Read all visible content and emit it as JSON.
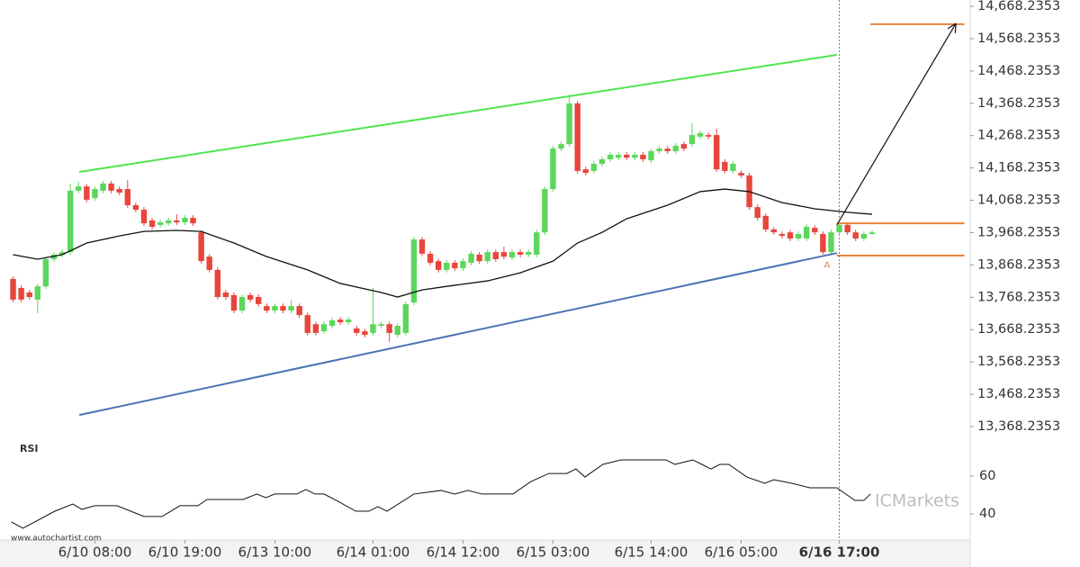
{
  "chart_data": {
    "type": "candlestick",
    "up_color": "#5cd65c",
    "down_color": "#e8453c",
    "xlim": [
      -0.5,
      117
    ],
    "ylim": [
      13323.7,
      14687.7
    ],
    "yticks": [
      {
        "value": 14668.2353,
        "label": "14,668.2353"
      },
      {
        "value": 14568.2353,
        "label": "14,568.2353"
      },
      {
        "value": 14468.2353,
        "label": "14,468.2353"
      },
      {
        "value": 14368.2353,
        "label": "14,368.2353"
      },
      {
        "value": 14268.2353,
        "label": "14,268.2353"
      },
      {
        "value": 14168.2353,
        "label": "14,168.2353"
      },
      {
        "value": 14068.2353,
        "label": "14,068.2353"
      },
      {
        "value": 13968.2353,
        "label": "13,968.2353"
      },
      {
        "value": 13868.2353,
        "label": "13,868.2353"
      },
      {
        "value": 13768.2353,
        "label": "13,768.2353"
      },
      {
        "value": 13668.2353,
        "label": "13,668.2353"
      },
      {
        "value": 13568.2353,
        "label": "13,568.2353"
      },
      {
        "value": 13468.2353,
        "label": "13,468.2353"
      },
      {
        "value": 13368.2353,
        "label": "13,368.2353"
      }
    ],
    "xticks": [
      {
        "value": 10,
        "label": "6/10 08:00"
      },
      {
        "value": 21,
        "label": "6/10 19:00"
      },
      {
        "value": 32,
        "label": "6/13 10:00"
      },
      {
        "value": 44,
        "label": "6/14 01:00"
      },
      {
        "value": 55,
        "label": "6/14 12:00"
      },
      {
        "value": 66,
        "label": "6/15 03:00"
      },
      {
        "value": 78,
        "label": "6/15 14:00"
      },
      {
        "value": 89,
        "label": "6/16 05:00"
      },
      {
        "value": 101,
        "label": "6/16 17:00"
      }
    ],
    "ohlc": [
      [
        13825,
        13833,
        13753,
        13761
      ],
      [
        13797,
        13805,
        13753,
        13761
      ],
      [
        13783,
        13791,
        13761,
        13769
      ],
      [
        13761,
        13810,
        13719,
        13802
      ],
      [
        13802,
        13894,
        13794,
        13886
      ],
      [
        13886,
        13908,
        13878,
        13900
      ],
      [
        13900,
        13916,
        13892,
        13908
      ],
      [
        13908,
        14120,
        13900,
        14098
      ],
      [
        14098,
        14125,
        14090,
        14111
      ],
      [
        14111,
        14119,
        14062,
        14070
      ],
      [
        14075,
        14111,
        14067,
        14103
      ],
      [
        14098,
        14128,
        14090,
        14120
      ],
      [
        14120,
        14128,
        14090,
        14098
      ],
      [
        14103,
        14111,
        14084,
        14092
      ],
      [
        14103,
        14131,
        14045,
        14053
      ],
      [
        14053,
        14061,
        14031,
        14039
      ],
      [
        14039,
        14047,
        13989,
        13997
      ],
      [
        14006,
        14014,
        13978,
        13986
      ],
      [
        13992,
        14008,
        13984,
        14000
      ],
      [
        13997,
        14014,
        13989,
        14006
      ],
      [
        14006,
        14025,
        13992,
        14000
      ],
      [
        14000,
        14022,
        13992,
        14014
      ],
      [
        14014,
        14022,
        13989,
        13997
      ],
      [
        13969,
        13975,
        13872,
        13880
      ],
      [
        13894,
        13902,
        13845,
        13853
      ],
      [
        13853,
        13861,
        13761,
        13769
      ],
      [
        13783,
        13791,
        13761,
        13769
      ],
      [
        13775,
        13783,
        13719,
        13727
      ],
      [
        13727,
        13777,
        13719,
        13769
      ],
      [
        13775,
        13783,
        13753,
        13761
      ],
      [
        13769,
        13777,
        13739,
        13747
      ],
      [
        13741,
        13749,
        13719,
        13727
      ],
      [
        13727,
        13749,
        13719,
        13741
      ],
      [
        13741,
        13749,
        13719,
        13727
      ],
      [
        13727,
        13760,
        13719,
        13741
      ],
      [
        13741,
        13749,
        13705,
        13713
      ],
      [
        13713,
        13721,
        13650,
        13658
      ],
      [
        13685,
        13693,
        13650,
        13658
      ],
      [
        13663,
        13693,
        13655,
        13685
      ],
      [
        13680,
        13705,
        13672,
        13697
      ],
      [
        13699,
        13707,
        13683,
        13691
      ],
      [
        13691,
        13707,
        13683,
        13699
      ],
      [
        13672,
        13680,
        13650,
        13658
      ],
      [
        13663,
        13671,
        13644,
        13652
      ],
      [
        13658,
        13797,
        13650,
        13685
      ],
      [
        13680,
        13693,
        13672,
        13685
      ],
      [
        13685,
        13693,
        13630,
        13658
      ],
      [
        13652,
        13688,
        13644,
        13680
      ],
      [
        13658,
        13755,
        13650,
        13747
      ],
      [
        13752,
        13955,
        13744,
        13947
      ],
      [
        13947,
        13955,
        13895,
        13903
      ],
      [
        13903,
        13911,
        13867,
        13875
      ],
      [
        13880,
        13888,
        13845,
        13853
      ],
      [
        13853,
        13883,
        13845,
        13875
      ],
      [
        13875,
        13883,
        13850,
        13858
      ],
      [
        13858,
        13888,
        13850,
        13880
      ],
      [
        13875,
        13911,
        13867,
        13903
      ],
      [
        13900,
        13908,
        13872,
        13880
      ],
      [
        13880,
        13916,
        13872,
        13908
      ],
      [
        13908,
        13916,
        13878,
        13886
      ],
      [
        13908,
        13925,
        13886,
        13894
      ],
      [
        13891,
        13916,
        13883,
        13908
      ],
      [
        13908,
        13916,
        13892,
        13900
      ],
      [
        13900,
        13916,
        13892,
        13908
      ],
      [
        13900,
        13977,
        13892,
        13969
      ],
      [
        13969,
        14111,
        13961,
        14103
      ],
      [
        14103,
        14236,
        14095,
        14228
      ],
      [
        14228,
        14250,
        14220,
        14242
      ],
      [
        14242,
        14395,
        14234,
        14368
      ],
      [
        14368,
        14376,
        14151,
        14159
      ],
      [
        14164,
        14172,
        14145,
        14153
      ],
      [
        14159,
        14189,
        14151,
        14181
      ],
      [
        14181,
        14203,
        14173,
        14195
      ],
      [
        14195,
        14217,
        14187,
        14209
      ],
      [
        14200,
        14217,
        14192,
        14209
      ],
      [
        14209,
        14217,
        14192,
        14200
      ],
      [
        14200,
        14217,
        14192,
        14209
      ],
      [
        14209,
        14217,
        14187,
        14195
      ],
      [
        14192,
        14228,
        14184,
        14220
      ],
      [
        14220,
        14236,
        14212,
        14228
      ],
      [
        14228,
        14236,
        14212,
        14220
      ],
      [
        14220,
        14245,
        14212,
        14237
      ],
      [
        14242,
        14250,
        14220,
        14228
      ],
      [
        14242,
        14306,
        14234,
        14270
      ],
      [
        14265,
        14284,
        14257,
        14276
      ],
      [
        14270,
        14278,
        14257,
        14265
      ],
      [
        14270,
        14290,
        14156,
        14164
      ],
      [
        14187,
        14195,
        14151,
        14159
      ],
      [
        14159,
        14189,
        14151,
        14181
      ],
      [
        14153,
        14161,
        14137,
        14145
      ],
      [
        14145,
        14153,
        14039,
        14047
      ],
      [
        14047,
        14055,
        14006,
        14014
      ],
      [
        14020,
        14028,
        13970,
        13978
      ],
      [
        13978,
        13986,
        13961,
        13969
      ],
      [
        13964,
        13972,
        13950,
        13958
      ],
      [
        13969,
        13977,
        13942,
        13950
      ],
      [
        13950,
        13972,
        13942,
        13964
      ],
      [
        13950,
        13994,
        13942,
        13986
      ],
      [
        13983,
        13991,
        13961,
        13969
      ],
      [
        13964,
        13972,
        13900,
        13908
      ],
      [
        13908,
        13977,
        13900,
        13969
      ],
      [
        13969,
        14000,
        13961,
        13992
      ],
      [
        13992,
        14000,
        13961,
        13969
      ],
      [
        13969,
        13977,
        13942,
        13950
      ],
      [
        13950,
        13972,
        13942,
        13964
      ],
      [
        13964,
        13975,
        13961,
        13969
      ]
    ],
    "moving_average": {
      "color": "#111111",
      "x": [
        0,
        3,
        6,
        9,
        13,
        16,
        20,
        23,
        27,
        31,
        36,
        40,
        45,
        47,
        50,
        53,
        58,
        62,
        66,
        69,
        72,
        75,
        80,
        84,
        87,
        90,
        94,
        98,
        102,
        105
      ],
      "values": [
        13900,
        13886,
        13900,
        13936,
        13958,
        13972,
        13975,
        13972,
        13936,
        13894,
        13853,
        13811,
        13783,
        13769,
        13791,
        13802,
        13819,
        13844,
        13880,
        13936,
        13969,
        14011,
        14053,
        14095,
        14103,
        14095,
        14061,
        14042,
        14031,
        14025
      ]
    },
    "lines": [
      {
        "color": "#4ee44e",
        "x": [
          8.1,
          100.7
        ],
        "y": [
          14156,
          14518
        ]
      },
      {
        "color": "#4a74b4",
        "x": [
          8.1,
          100.7
        ],
        "y": [
          13404,
          13905
        ]
      },
      {
        "color": "#e8843c",
        "x": [
          104.8,
          116.3
        ],
        "y": [
          14613,
          14613
        ]
      },
      {
        "color": "#e8843c",
        "x": [
          100.7,
          116.3
        ],
        "y": [
          13997,
          13997
        ]
      },
      {
        "color": "#e8843c",
        "x": [
          100.7,
          116.3
        ],
        "y": [
          13897,
          13897
        ]
      }
    ],
    "arrow": {
      "color": "#111111",
      "x": [
        100.7,
        115.2
      ],
      "y": [
        13992,
        14613
      ]
    },
    "annotations": [
      {
        "text": "A",
        "x": 99.5,
        "y": 13868,
        "color": "#e8843c"
      }
    ],
    "rsi": {
      "label": "RSI",
      "color": "#111111",
      "ylim": [
        27.1,
        78.6
      ],
      "yticks": [
        60,
        40
      ],
      "x": [
        -0.2,
        1.2,
        5.1,
        7.3,
        8.4,
        10,
        12.7,
        14.9,
        16,
        18.2,
        20.4,
        22.6,
        23.7,
        28.1,
        29.8,
        30.9,
        32,
        34.7,
        35.8,
        36.9,
        38,
        39.7,
        41.9,
        43.5,
        44.6,
        45.7,
        49,
        52.3,
        54,
        55.6,
        57.3,
        61.1,
        63.3,
        65.5,
        67.7,
        68.8,
        69.9,
        72.1,
        74.3,
        79.8,
        80.9,
        83.1,
        84.2,
        85.3,
        86.4,
        87.5,
        89.7,
        91.9,
        93,
        95.2,
        97.4,
        100.7,
        102.9,
        104,
        104.8
      ],
      "values": [
        35.7,
        32.4,
        41.4,
        45.2,
        42.4,
        44.3,
        44.3,
        40.5,
        38.6,
        38.6,
        44.3,
        44.3,
        47.6,
        47.6,
        50.5,
        48.6,
        50.5,
        50.5,
        52.9,
        50.5,
        50.5,
        46.7,
        41.4,
        41.4,
        43.8,
        41.4,
        50.5,
        52.4,
        50.5,
        52.4,
        50.5,
        50.5,
        57.1,
        61.4,
        61.4,
        63.8,
        59.5,
        66.2,
        68.6,
        68.6,
        66.2,
        68.6,
        66.2,
        63.8,
        66.2,
        66.2,
        59.5,
        56.2,
        58.1,
        56.2,
        53.8,
        53.8,
        47.1,
        47.1,
        50.5
      ]
    },
    "source": "www.autochartist.com",
    "watermark": "ICMarkets"
  }
}
